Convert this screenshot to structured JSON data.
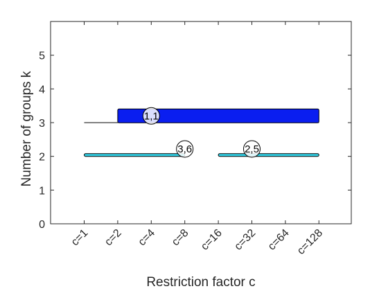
{
  "chart_data": {
    "type": "bar",
    "title": "",
    "xlabel": "Restriction factor c",
    "ylabel": "Number of groups k",
    "categories": [
      "c=1",
      "c=2",
      "c=4",
      "c=8",
      "c=16",
      "c=32",
      "c=64",
      "c=128"
    ],
    "ylim": [
      0,
      6
    ],
    "yticks": [
      0,
      1,
      2,
      3,
      4,
      5
    ],
    "grid": false,
    "legend": "none",
    "reference_line": {
      "y": 3,
      "from": "c=1",
      "to": "c=128"
    },
    "bands": [
      {
        "y": 3.2,
        "from": "c=2",
        "to": "c=128",
        "label": "1,1",
        "label_at": "c=4",
        "color": "#0a1ef0"
      },
      {
        "y": 2.04,
        "from": "c=1",
        "to": "c=8",
        "label": "3,6",
        "label_at": "c=8",
        "color": "#33d3e8"
      },
      {
        "y": 2.04,
        "from": "c=16",
        "to": "c=128",
        "label": "2,5",
        "label_at": "c=32",
        "color": "#33d3e8"
      }
    ]
  }
}
